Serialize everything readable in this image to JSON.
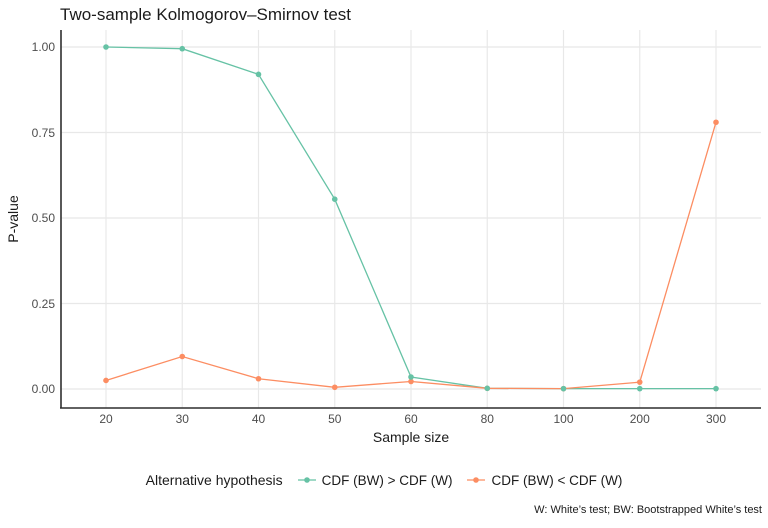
{
  "title": "Two-sample Kolmogorov–Smirnov test",
  "caption": "W: White’s test; BW: Bootstrapped White’s test",
  "chart_data": {
    "type": "line",
    "title": "Two-sample Kolmogorov–Smirnov test",
    "xlabel": "Sample size",
    "ylabel": "P-value",
    "x_categories": [
      "20",
      "30",
      "40",
      "50",
      "60",
      "80",
      "100",
      "200",
      "300"
    ],
    "x_scale": "discrete",
    "series": [
      {
        "name": "CDF (BW) > CDF (W)",
        "color": "#66C2A5",
        "values": [
          1.0,
          0.995,
          0.92,
          0.555,
          0.035,
          0.002,
          0.001,
          0.001,
          0.001
        ]
      },
      {
        "name": "CDF (BW) < CDF (W)",
        "color": "#FC8D62",
        "values": [
          0.025,
          0.095,
          0.03,
          0.005,
          0.022,
          0.002,
          0.001,
          0.02,
          0.78
        ]
      }
    ],
    "ylim": [
      0,
      1
    ],
    "y_tick_values": [
      0,
      0.25,
      0.5,
      0.75,
      1.0
    ],
    "y_tick_labels": [
      "0.00",
      "0.25",
      "0.50",
      "0.75",
      "1.00"
    ],
    "grid": true,
    "legend_title": "Alternative hypothesis",
    "legend_position": "bottom",
    "marker": "circle"
  },
  "colors": {
    "background": "#FFFFFF",
    "gridline": "#E8E8E8",
    "axis_line": "#2F2F2F",
    "tick_text": "#4D4D4D",
    "title_text": "#1B1B1B"
  }
}
